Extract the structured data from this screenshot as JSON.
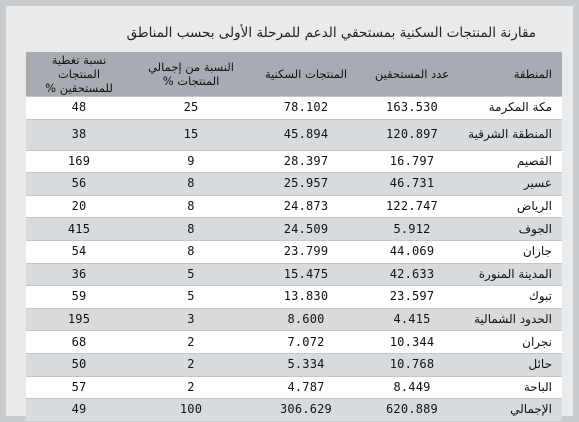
{
  "title": "مقارنة المنتجات السكنية بمستحقي الدعم للمرحلة الأولى بحسب المناطق",
  "headers": {
    "region": "المنطقة",
    "beneficiaries": "عدد المستحقين",
    "products": "المنتجات السكنية",
    "share": "النسبة من إجمالي المنتجات %",
    "coverage": "نسبة تغطية المنتجات للمستحقين %"
  },
  "rows": [
    {
      "region": "مكة المكرمة",
      "beneficiaries": "163.530",
      "products": "78.102",
      "share": "25",
      "coverage": "48"
    },
    {
      "region": "المنطقة الشرقية",
      "beneficiaries": "120.897",
      "products": "45.894",
      "share": "15",
      "coverage": "38"
    },
    {
      "region": "القصيم",
      "beneficiaries": "16.797",
      "products": "28.397",
      "share": "9",
      "coverage": "169"
    },
    {
      "region": "عسير",
      "beneficiaries": "46.731",
      "products": "25.957",
      "share": "8",
      "coverage": "56"
    },
    {
      "region": "الرياض",
      "beneficiaries": "122.747",
      "products": "24.873",
      "share": "8",
      "coverage": "20"
    },
    {
      "region": "الجوف",
      "beneficiaries": "5.912",
      "products": "24.509",
      "share": "8",
      "coverage": "415"
    },
    {
      "region": "جازان",
      "beneficiaries": "44.069",
      "products": "23.799",
      "share": "8",
      "coverage": "54"
    },
    {
      "region": "المدينة المنورة",
      "beneficiaries": "42.633",
      "products": "15.475",
      "share": "5",
      "coverage": "36"
    },
    {
      "region": "تبوك",
      "beneficiaries": "23.597",
      "products": "13.830",
      "share": "5",
      "coverage": "59"
    },
    {
      "region": "الحدود الشمالية",
      "beneficiaries": "4.415",
      "products": "8.600",
      "share": "3",
      "coverage": "195"
    },
    {
      "region": "نجران",
      "beneficiaries": "10.344",
      "products": "7.072",
      "share": "2",
      "coverage": "68"
    },
    {
      "region": "حائل",
      "beneficiaries": "10.768",
      "products": "5.334",
      "share": "2",
      "coverage": "50"
    },
    {
      "region": "الباحة",
      "beneficiaries": "8.449",
      "products": "4.787",
      "share": "2",
      "coverage": "57"
    },
    {
      "region": "الإجمالي",
      "beneficiaries": "620.889",
      "products": "306.629",
      "share": "100",
      "coverage": "49"
    }
  ]
}
